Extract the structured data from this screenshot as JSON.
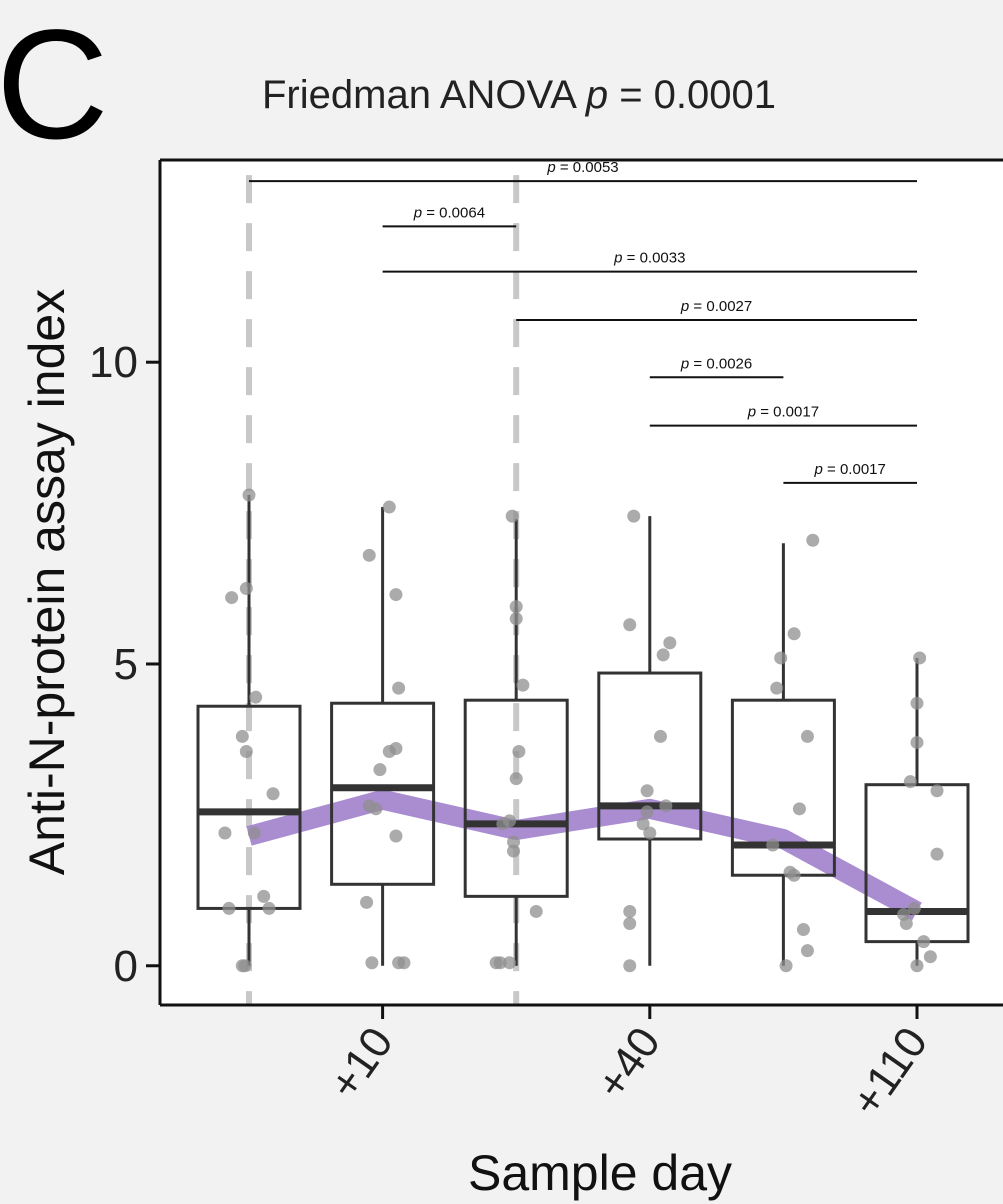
{
  "panel_label": "C",
  "title": "Friedman ANOVA p = 0.0001",
  "title_prefix": "Friedman ANOVA ",
  "title_p": "p",
  "title_rest": " = 0.0001",
  "colors": {
    "trend": "#9b79c9",
    "points": "#8f8f8f",
    "box": "#333333",
    "median": "#333333",
    "dashed_lines": "#c8c8c8",
    "background": "#f2f2f2",
    "panel": "#ffffff"
  },
  "chart_data": {
    "type": "box",
    "title": "Friedman ANOVA p = 0.0001",
    "xlabel": "Sample day",
    "ylabel": "Anti-N-protein assay index",
    "ylim": [
      -0.65,
      13.35
    ],
    "yticks": [
      0,
      5,
      10
    ],
    "ytick_labels": [
      "0",
      "5",
      "10"
    ],
    "grid": false,
    "legend": "none",
    "categories": [
      "",
      "+10",
      "",
      "+40",
      "",
      "+110"
    ],
    "dashed_vertical_lines_at_category_index": [
      0,
      2
    ],
    "boxes": [
      {
        "category_index": 0,
        "q1": 0.95,
        "median": 2.55,
        "q3": 4.3,
        "whisker_low": 0.0,
        "whisker_high": 7.8
      },
      {
        "category_index": 1,
        "q1": 1.35,
        "median": 2.95,
        "q3": 4.35,
        "whisker_low": 0.0,
        "whisker_high": 7.6
      },
      {
        "category_index": 2,
        "q1": 1.15,
        "median": 2.35,
        "q3": 4.4,
        "whisker_low": 0.0,
        "whisker_high": 7.4
      },
      {
        "category_index": 3,
        "q1": 2.1,
        "median": 2.65,
        "q3": 4.85,
        "whisker_low": 0.0,
        "whisker_high": 7.45
      },
      {
        "category_index": 4,
        "q1": 1.5,
        "median": 2.0,
        "q3": 4.4,
        "whisker_low": 0.0,
        "whisker_high": 7.0
      },
      {
        "category_index": 5,
        "q1": 0.4,
        "median": 0.9,
        "q3": 3.0,
        "whisker_low": 0.0,
        "whisker_high": 5.1
      }
    ],
    "points": [
      [
        {
          "dx": -0.13,
          "y": 6.1
        },
        {
          "dx": -0.02,
          "y": 6.25
        },
        {
          "dx": 0.0,
          "y": 7.8
        },
        {
          "dx": -0.05,
          "y": 3.8
        },
        {
          "dx": -0.02,
          "y": 3.55
        },
        {
          "dx": 0.05,
          "y": 4.45
        },
        {
          "dx": 0.18,
          "y": 2.85
        },
        {
          "dx": -0.18,
          "y": 2.2
        },
        {
          "dx": 0.04,
          "y": 2.2
        },
        {
          "dx": -0.15,
          "y": 0.95
        },
        {
          "dx": 0.11,
          "y": 1.15
        },
        {
          "dx": 0.15,
          "y": 0.95
        },
        {
          "dx": -0.05,
          "y": 0.0
        },
        {
          "dx": -0.03,
          "y": 0.0
        }
      ],
      [
        {
          "dx": 0.05,
          "y": 7.6
        },
        {
          "dx": -0.1,
          "y": 6.8
        },
        {
          "dx": 0.1,
          "y": 6.15
        },
        {
          "dx": 0.12,
          "y": 4.6
        },
        {
          "dx": 0.1,
          "y": 3.6
        },
        {
          "dx": 0.05,
          "y": 3.55
        },
        {
          "dx": -0.02,
          "y": 3.25
        },
        {
          "dx": -0.1,
          "y": 2.65
        },
        {
          "dx": -0.05,
          "y": 2.6
        },
        {
          "dx": 0.1,
          "y": 2.15
        },
        {
          "dx": -0.12,
          "y": 1.05
        },
        {
          "dx": -0.08,
          "y": 0.05
        },
        {
          "dx": 0.12,
          "y": 0.05
        },
        {
          "dx": 0.16,
          "y": 0.05
        }
      ],
      [
        {
          "dx": -0.03,
          "y": 7.45
        },
        {
          "dx": 0.0,
          "y": 5.95
        },
        {
          "dx": 0.0,
          "y": 5.75
        },
        {
          "dx": 0.05,
          "y": 4.65
        },
        {
          "dx": 0.02,
          "y": 3.55
        },
        {
          "dx": 0.0,
          "y": 3.1
        },
        {
          "dx": -0.05,
          "y": 2.4
        },
        {
          "dx": -0.1,
          "y": 2.35
        },
        {
          "dx": -0.02,
          "y": 2.05
        },
        {
          "dx": -0.02,
          "y": 1.9
        },
        {
          "dx": 0.15,
          "y": 0.9
        },
        {
          "dx": -0.15,
          "y": 0.05
        },
        {
          "dx": -0.12,
          "y": 0.05
        },
        {
          "dx": -0.05,
          "y": 0.05
        }
      ],
      [
        {
          "dx": -0.12,
          "y": 7.45
        },
        {
          "dx": -0.15,
          "y": 5.65
        },
        {
          "dx": 0.1,
          "y": 5.15
        },
        {
          "dx": 0.15,
          "y": 5.35
        },
        {
          "dx": 0.08,
          "y": 3.8
        },
        {
          "dx": -0.02,
          "y": 2.9
        },
        {
          "dx": 0.12,
          "y": 2.65
        },
        {
          "dx": -0.02,
          "y": 2.55
        },
        {
          "dx": -0.05,
          "y": 2.35
        },
        {
          "dx": 0.0,
          "y": 2.2
        },
        {
          "dx": -0.15,
          "y": 0.9
        },
        {
          "dx": -0.15,
          "y": 0.7
        },
        {
          "dx": -0.15,
          "y": 0.0
        }
      ],
      [
        {
          "dx": 0.22,
          "y": 7.05
        },
        {
          "dx": 0.08,
          "y": 5.5
        },
        {
          "dx": -0.02,
          "y": 5.1
        },
        {
          "dx": -0.05,
          "y": 4.6
        },
        {
          "dx": 0.18,
          "y": 3.8
        },
        {
          "dx": 0.12,
          "y": 2.6
        },
        {
          "dx": -0.08,
          "y": 2.0
        },
        {
          "dx": 0.05,
          "y": 1.55
        },
        {
          "dx": 0.08,
          "y": 1.5
        },
        {
          "dx": 0.15,
          "y": 0.6
        },
        {
          "dx": 0.18,
          "y": 0.25
        },
        {
          "dx": 0.02,
          "y": 0.0
        }
      ],
      [
        {
          "dx": 0.02,
          "y": 5.1
        },
        {
          "dx": 0.0,
          "y": 4.35
        },
        {
          "dx": 0.0,
          "y": 3.7
        },
        {
          "dx": -0.05,
          "y": 3.05
        },
        {
          "dx": 0.15,
          "y": 2.9
        },
        {
          "dx": 0.15,
          "y": 1.85
        },
        {
          "dx": -0.02,
          "y": 0.95
        },
        {
          "dx": -0.1,
          "y": 0.85
        },
        {
          "dx": -0.08,
          "y": 0.7
        },
        {
          "dx": 0.05,
          "y": 0.4
        },
        {
          "dx": 0.1,
          "y": 0.15
        },
        {
          "dx": 0.0,
          "y": 0.0
        }
      ]
    ],
    "trend_line": {
      "x_index": [
        0,
        1,
        2,
        3,
        4,
        5
      ],
      "y": [
        2.15,
        2.75,
        2.25,
        2.6,
        2.1,
        0.9
      ]
    },
    "significance": [
      {
        "from_index": 0,
        "to_index": 5,
        "y": 13.0,
        "label": "p = 0.0053"
      },
      {
        "from_index": 1,
        "to_index": 2,
        "y": 12.25,
        "label": "p = 0.0064"
      },
      {
        "from_index": 1,
        "to_index": 5,
        "y": 11.5,
        "label": "p = 0.0033"
      },
      {
        "from_index": 2,
        "to_index": 5,
        "y": 10.7,
        "label": "p = 0.0027"
      },
      {
        "from_index": 3,
        "to_index": 4,
        "y": 9.75,
        "label": "p = 0.0026"
      },
      {
        "from_index": 3,
        "to_index": 5,
        "y": 8.95,
        "label": "p = 0.0017"
      },
      {
        "from_index": 4,
        "to_index": 5,
        "y": 8.0,
        "label": "p = 0.0017"
      }
    ]
  }
}
